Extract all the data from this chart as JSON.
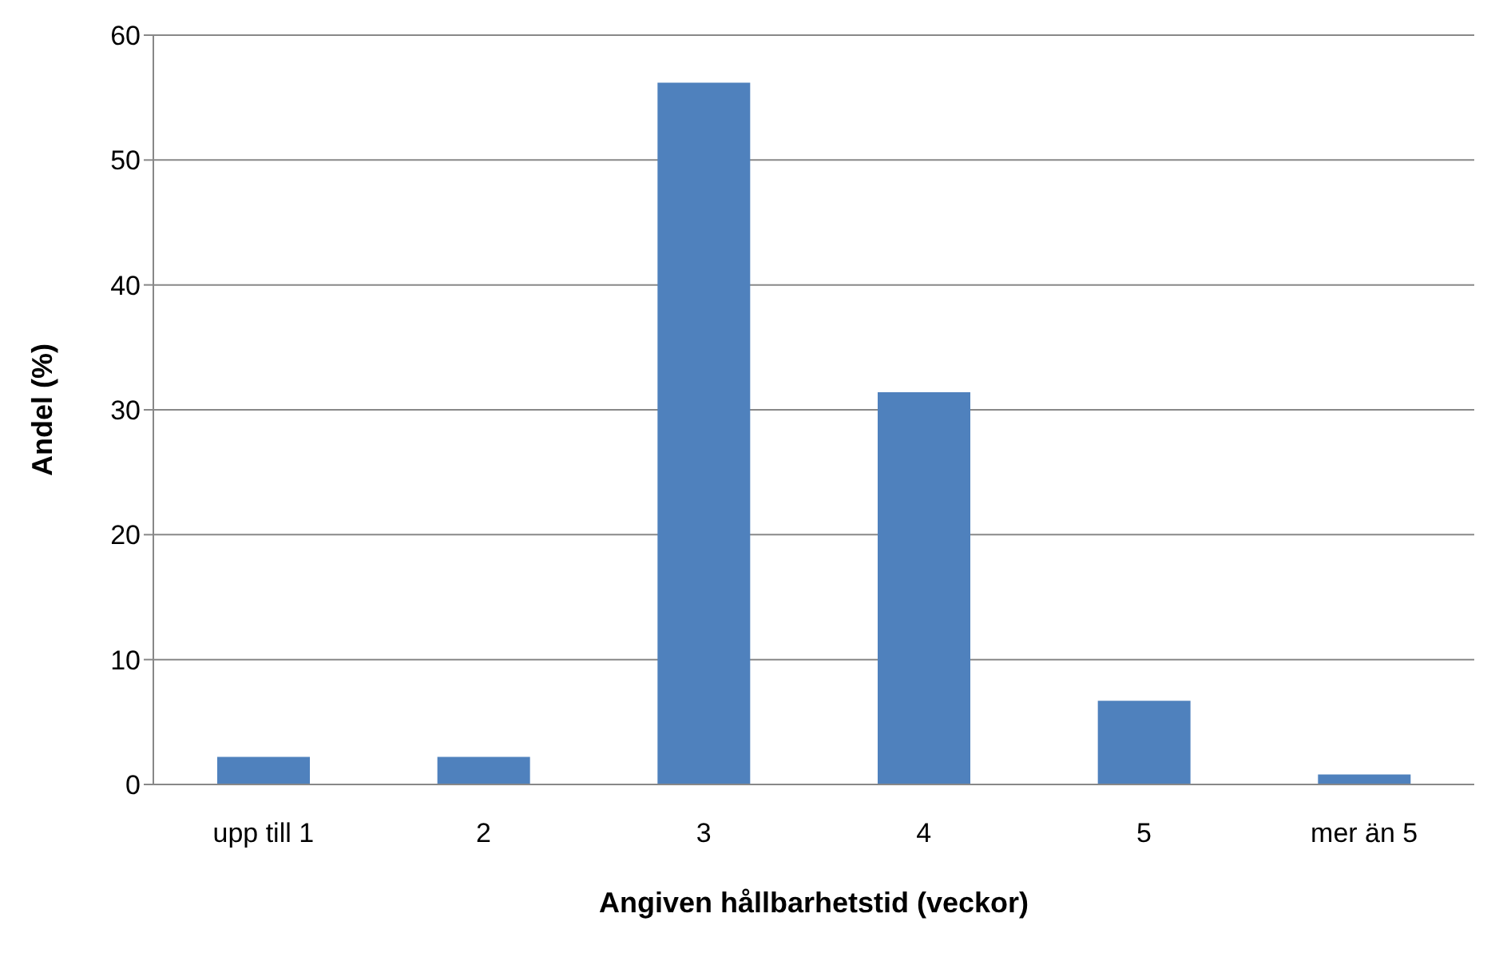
{
  "chart_data": {
    "type": "bar",
    "xlabel": "Angiven hållbarhetstid (veckor)",
    "ylabel": "Andel (%)",
    "categories": [
      "upp till 1",
      "2",
      "3",
      "4",
      "5",
      "mer än 5"
    ],
    "values": [
      2.2,
      2.2,
      56.2,
      31.4,
      6.7,
      0.8
    ],
    "color": "#4f81bd",
    "ylim": [
      0,
      60
    ],
    "yticks": [
      0,
      10,
      20,
      30,
      40,
      50,
      60
    ],
    "grid": "y"
  }
}
